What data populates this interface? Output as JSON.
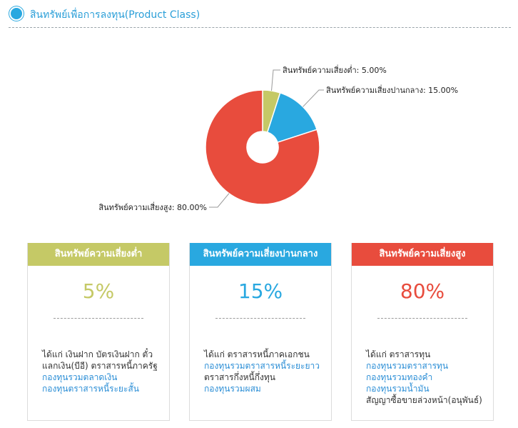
{
  "header": {
    "title": "สินทรัพย์เพื่อการลงทุน(Product Class)"
  },
  "chart_data": {
    "type": "pie",
    "donut": true,
    "slices": [
      {
        "label": "สินทรัพย์ความเสี่ยงต่ำ",
        "value": 5.0,
        "display": "สินทรัพย์ความเสี่ยงต่ำ: 5.00%",
        "color": "#c5c966"
      },
      {
        "label": "สินทรัพย์ความเสี่ยงปานกลาง",
        "value": 15.0,
        "display": "สินทรัพย์ความเสี่ยงปานกลาง: 15.00%",
        "color": "#29a8e0"
      },
      {
        "label": "สินทรัพย์ความเสี่ยงสูง",
        "value": 80.0,
        "display": "สินทรัพย์ความเสี่ยงสูง: 80.00%",
        "color": "#e84c3d"
      }
    ]
  },
  "cards": [
    {
      "title": "สินทรัพย์ความเสี่ยงต่ำ",
      "percent": "5%",
      "color": "#c5c966",
      "desc_lines": [
        {
          "text": "ได้แก่ เงินฝาก บัตรเงินฝาก ตั๋ว",
          "link": false
        },
        {
          "text": "แลกเงิน(บีอี) ตราสารหนี้ภาครัฐ",
          "link": false
        },
        {
          "text": "กองทุนรวมตลาดเงิน",
          "link": true
        },
        {
          "text": "กองทุนตราสารหนี้ระยะสั้น",
          "link": true
        }
      ]
    },
    {
      "title": "สินทรัพย์ความเสี่ยงปานกลาง",
      "percent": "15%",
      "color": "#29a8e0",
      "desc_lines": [
        {
          "text": "ได้แก่ ตราสารหนี้ภาคเอกชน",
          "link": false
        },
        {
          "text": "กองทุนรวมตราสารหนี้ระยะยาว",
          "link": true
        },
        {
          "text": "ตราสารกึ่งหนี้กึ่งทุน",
          "link": false
        },
        {
          "text": "กองทุนรวมผสม",
          "link": true
        }
      ]
    },
    {
      "title": "สินทรัพย์ความเสี่ยงสูง",
      "percent": "80%",
      "color": "#e84c3d",
      "desc_lines": [
        {
          "text": "ได้แก่ ตราสารทุน",
          "link": false
        },
        {
          "text": "กองทุนรวมตราสารทุน",
          "link": true
        },
        {
          "text": "กองทุนรวมทองคำ",
          "link": true
        },
        {
          "text": "กองทุนรวมน้ำมัน",
          "link": true
        },
        {
          "text": "สัญญาซื้อขายล่วงหน้า(อนุพันธ์)",
          "link": false
        }
      ]
    }
  ]
}
